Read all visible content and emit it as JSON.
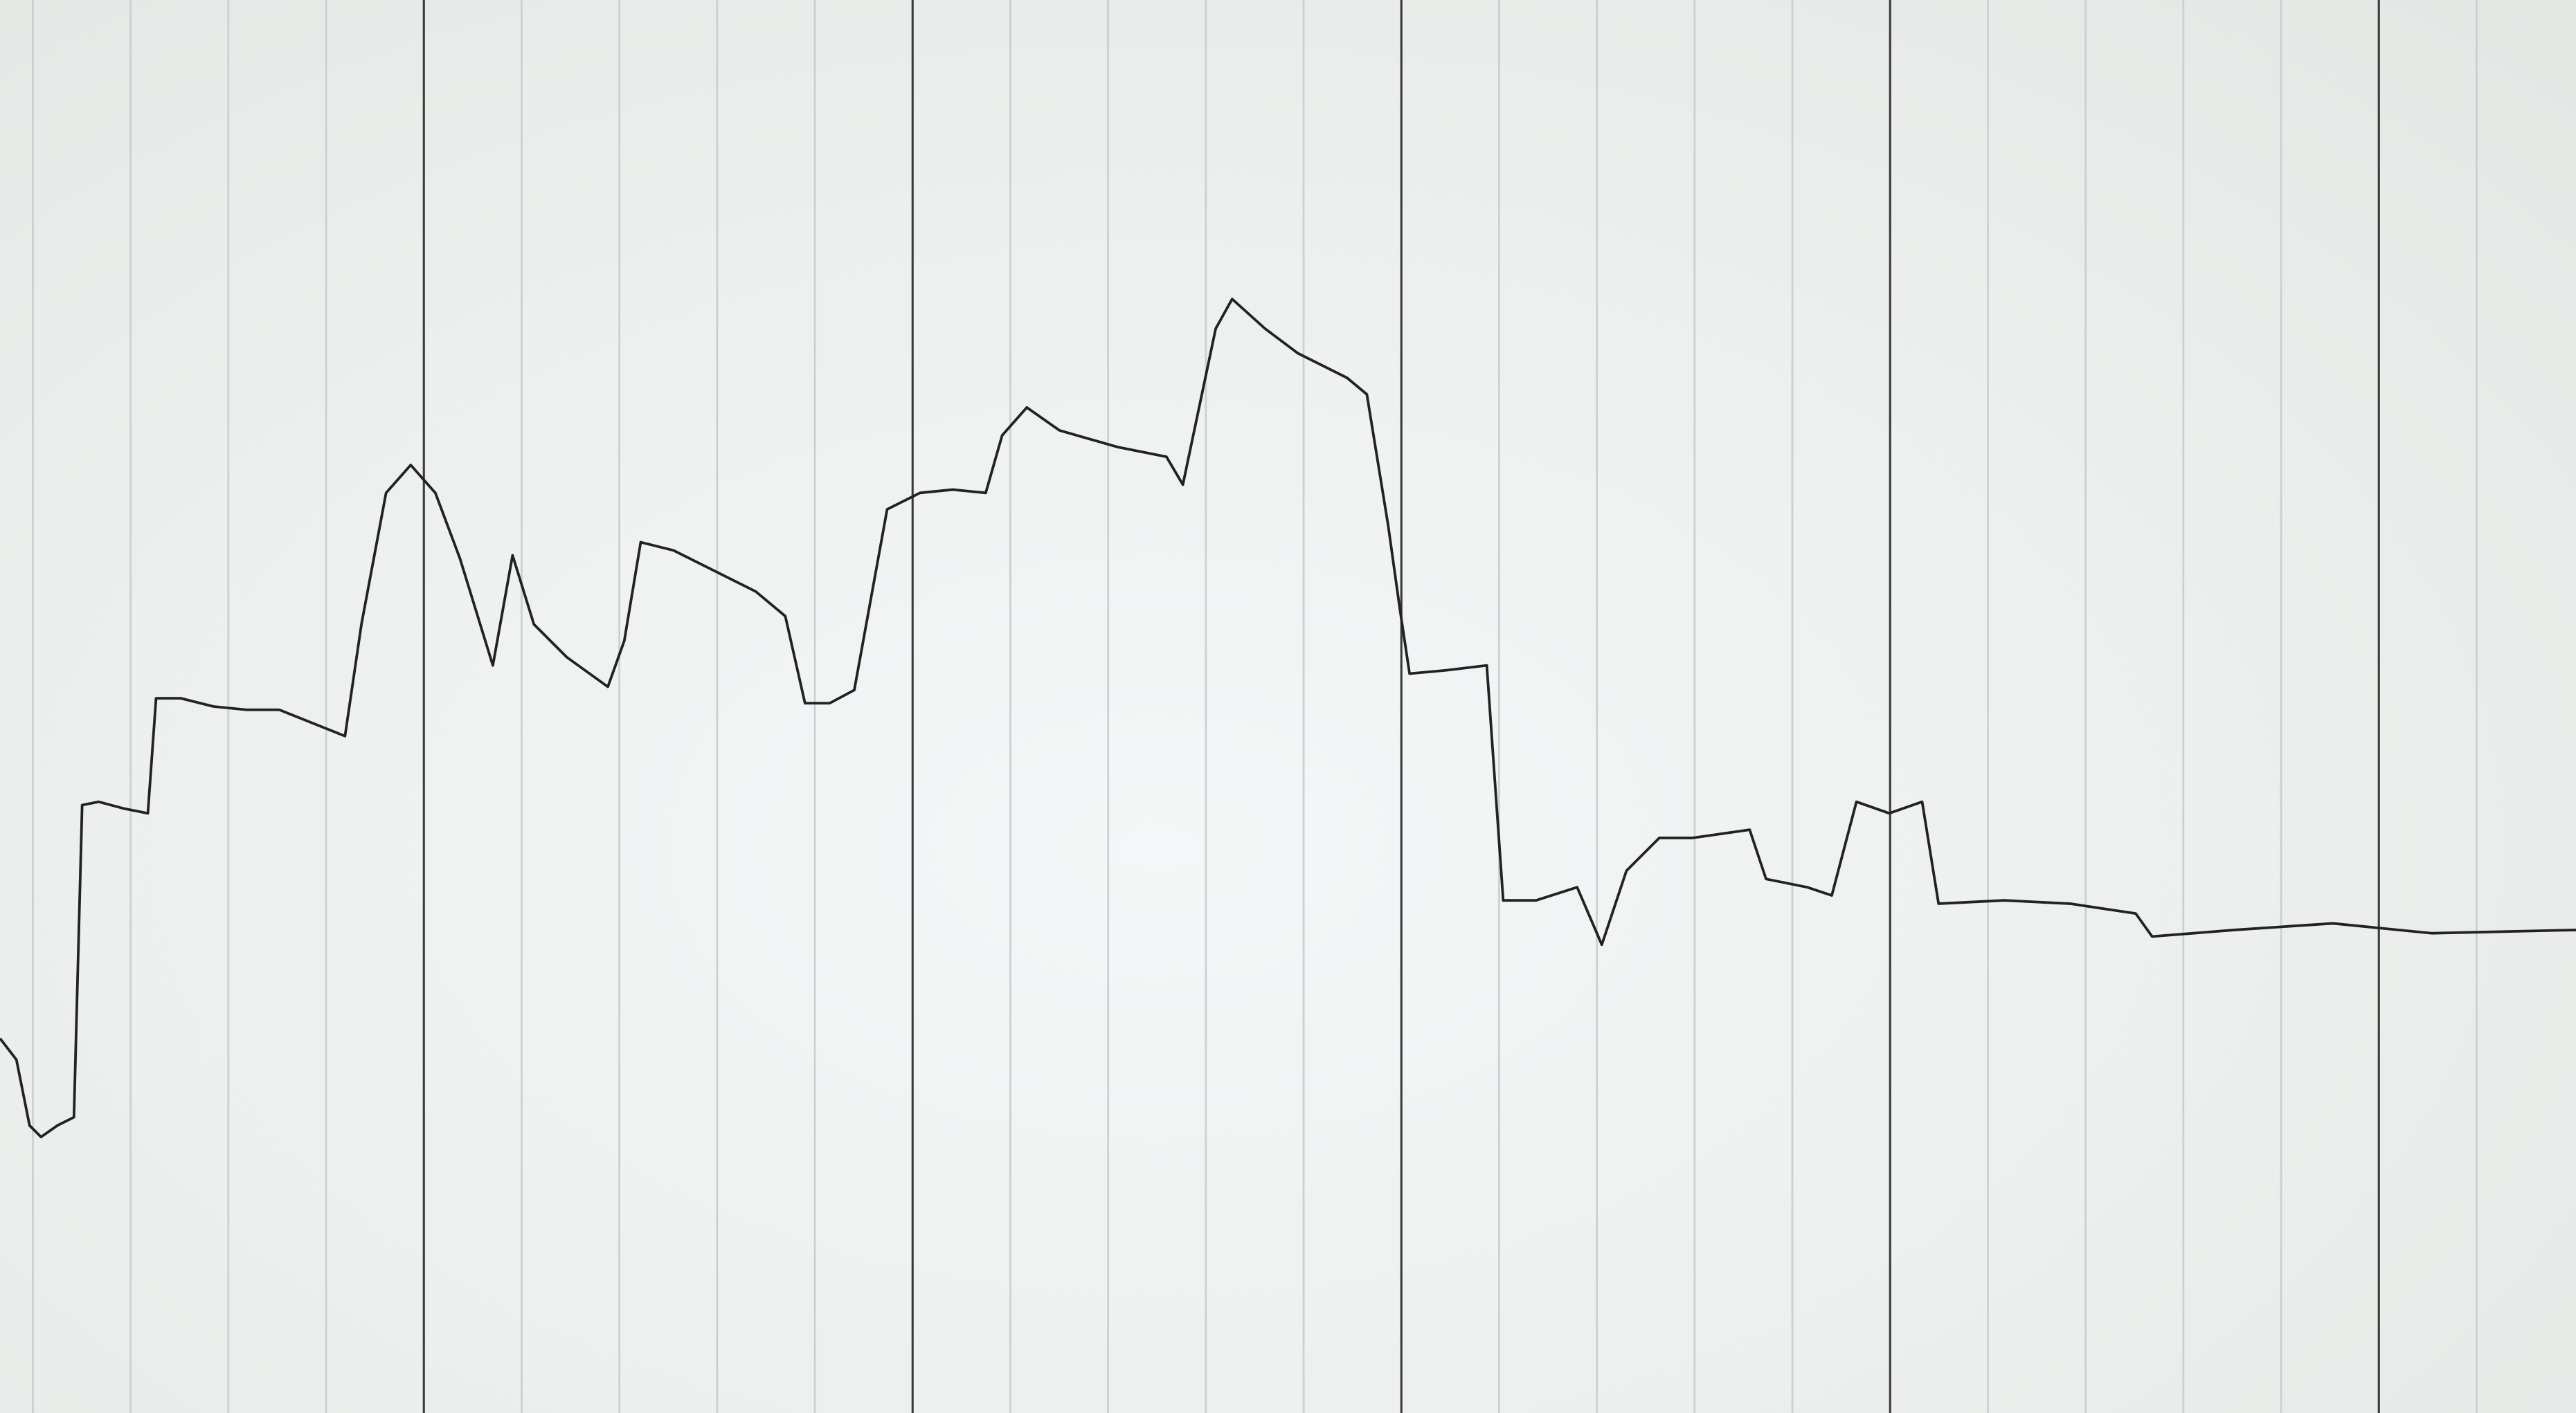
{
  "chart_data": {
    "type": "line",
    "x": [
      0,
      10,
      18,
      25,
      35,
      45,
      50,
      60,
      75,
      90,
      95,
      110,
      130,
      150,
      170,
      190,
      210,
      220,
      235,
      250,
      265,
      280,
      300,
      312,
      325,
      345,
      370,
      380,
      390,
      410,
      430,
      460,
      478,
      490,
      505,
      520,
      540,
      560,
      580,
      600,
      610,
      625,
      645,
      680,
      710,
      720,
      740,
      750,
      770,
      790,
      820,
      832,
      845,
      852,
      858,
      880,
      905,
      915,
      935,
      960,
      975,
      990,
      1010,
      1030,
      1065,
      1075,
      1100,
      1115,
      1130,
      1150,
      1170,
      1180,
      1220,
      1260,
      1300,
      1310,
      1360,
      1420,
      1480,
      1568
    ],
    "series": [
      {
        "color": "#222222",
        "values": [
          228,
          215,
          175,
          168,
          175,
          180,
          370,
          372,
          368,
          365,
          435,
          435,
          430,
          428,
          428,
          420,
          412,
          480,
          560,
          577,
          560,
          520,
          455,
          522,
          480,
          460,
          442,
          470,
          530,
          525,
          515,
          500,
          485,
          432,
          432,
          440,
          550,
          560,
          562,
          560,
          595,
          612,
          598,
          588,
          582,
          565,
          660,
          678,
          660,
          645,
          630,
          620,
          540,
          490,
          450,
          452,
          455,
          312,
          312,
          320,
          285,
          330,
          350,
          350,
          355,
          325,
          320,
          315,
          372,
          365,
          372,
          310,
          312,
          310,
          304,
          290,
          294,
          298,
          292,
          294
        ]
      }
    ],
    "xlim": [
      0,
      1568
    ],
    "ylim": [
      0,
      860
    ],
    "xticks": [
      20,
      79.5,
      139,
      198.5,
      317.5,
      377,
      436.5,
      496,
      615,
      674.5,
      734,
      793.5,
      912.5,
      972,
      1031.5,
      1091,
      1210,
      1269.5,
      1329,
      1388.5,
      1507.5
    ],
    "xticks_major": [
      258,
      555.5,
      853,
      1150.5,
      1448
    ],
    "grid": true,
    "grid_color": "#c9d2d2",
    "major_grid_color": "#3a3a3a"
  }
}
